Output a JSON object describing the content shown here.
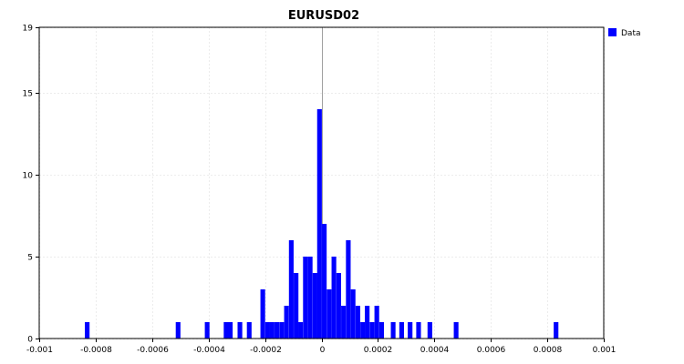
{
  "chart_data": {
    "type": "bar",
    "title": "EURUSD02",
    "xlabel": "",
    "ylabel": "",
    "xlim": [
      -0.001,
      0.001
    ],
    "ylim": [
      0,
      19
    ],
    "bin_width": 1.66e-05,
    "x_ticks": [
      "-0.001",
      "-0.0008",
      "-0.0006",
      "-0.0004",
      "-0.0002",
      "0",
      "0.0002",
      "0.0004",
      "0.0006",
      "0.0008",
      "0.001"
    ],
    "x_tick_values": [
      -0.001,
      -0.0008,
      -0.0006,
      -0.0004,
      -0.0002,
      0,
      0.0002,
      0.0004,
      0.0006,
      0.0008,
      0.001
    ],
    "y_ticks": [
      "0",
      "5",
      "10",
      "15",
      "19"
    ],
    "y_tick_values": [
      0,
      5,
      10,
      15,
      19
    ],
    "grid": true,
    "legend_position": "top-right",
    "series": [
      {
        "name": "Data",
        "color": "#0000ff",
        "x": [
          -0.00083,
          -0.000508,
          -0.000405,
          -0.000338,
          -0.000323,
          -0.000289,
          -0.000256,
          -0.000208,
          -0.000191,
          -0.000175,
          -0.000158,
          -0.000141,
          -0.000124,
          -0.000107,
          -9e-05,
          -7.4e-05,
          -5.7e-05,
          -4e-05,
          -2.3e-05,
          -7e-06,
          1e-05,
          2.7e-05,
          4.4e-05,
          6.1e-05,
          7.8e-05,
          9.5e-05,
          0.000112,
          0.000129,
          0.000146,
          0.000162,
          0.000179,
          0.000196,
          0.000213,
          0.000254,
          0.000284,
          0.000314,
          0.000344,
          0.000384,
          0.000477,
          0.000831
        ],
        "values": [
          1,
          1,
          1,
          1,
          1,
          1,
          1,
          3,
          1,
          1,
          1,
          1,
          2,
          6,
          4,
          1,
          5,
          5,
          4,
          14,
          7,
          3,
          5,
          4,
          2,
          6,
          3,
          2,
          1,
          2,
          1,
          2,
          1,
          1,
          1,
          1,
          1,
          1,
          1,
          1
        ]
      }
    ]
  }
}
